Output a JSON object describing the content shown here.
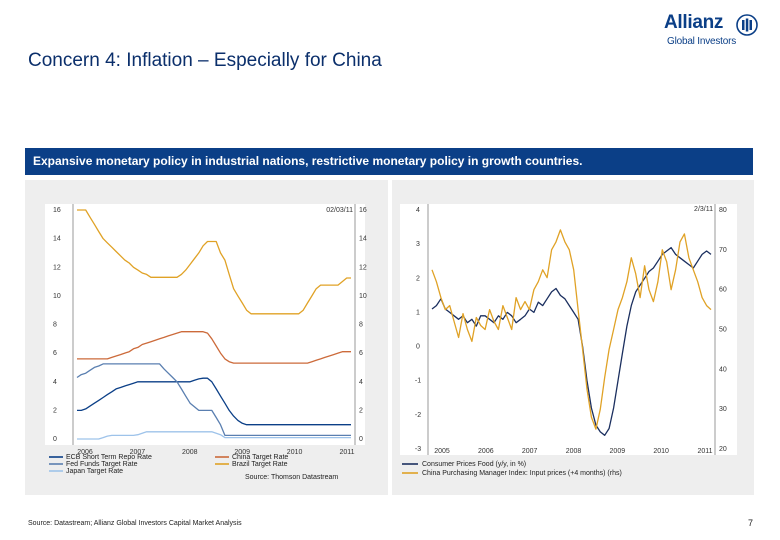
{
  "header": {
    "title": "Concern 4: Inflation – Especially for China",
    "logo_brand": "Allianz",
    "logo_sub": "Global Investors"
  },
  "banner": {
    "text": "Expansive monetary policy in industrial nations, restrictive monetary policy in growth countries."
  },
  "colors": {
    "navy": "#0b3f87",
    "lightblue": "#9ec3ea",
    "orange": "#cc6a3a",
    "gold": "#e0a226",
    "darknavy": "#1b2f5f"
  },
  "footer": {
    "source": "Source: Datastream; Allianz Global Investors Capital Market Analysis",
    "page": "7"
  },
  "chart_data": [
    {
      "type": "line",
      "date_label": "02/03/11",
      "x_ticks": [
        "2006",
        "2007",
        "2008",
        "2009",
        "2010",
        "2011"
      ],
      "y_left_ticks": [
        "0",
        "2",
        "4",
        "6",
        "8",
        "10",
        "12",
        "14",
        "16"
      ],
      "y_right_ticks": [
        "0",
        "2",
        "4",
        "6",
        "8",
        "10",
        "12",
        "14",
        "16"
      ],
      "ylim": [
        0,
        16
      ],
      "source_note": "Source: Thomson Datastream",
      "series": [
        {
          "name": "ECB Short Term Repo Rate",
          "color": "#0b3f87",
          "values": [
            2.0,
            2.0,
            2.1,
            2.3,
            2.5,
            2.7,
            2.9,
            3.1,
            3.3,
            3.5,
            3.6,
            3.7,
            3.8,
            3.9,
            4.0,
            4.0,
            4.0,
            4.0,
            4.0,
            4.0,
            4.0,
            4.0,
            4.0,
            4.0,
            4.0,
            4.0,
            4.0,
            4.1,
            4.2,
            4.25,
            4.25,
            4.0,
            3.5,
            3.0,
            2.5,
            2.0,
            1.6,
            1.3,
            1.1,
            1.0,
            1.0,
            1.0,
            1.0,
            1.0,
            1.0,
            1.0,
            1.0,
            1.0,
            1.0,
            1.0,
            1.0,
            1.0,
            1.0,
            1.0,
            1.0,
            1.0,
            1.0,
            1.0,
            1.0,
            1.0,
            1.0,
            1.0,
            1.0,
            1.0
          ]
        },
        {
          "name": "Fed Funds Target Rate",
          "color": "#5a7fb0",
          "values": [
            4.3,
            4.5,
            4.6,
            4.8,
            5.0,
            5.1,
            5.25,
            5.25,
            5.25,
            5.25,
            5.25,
            5.25,
            5.25,
            5.25,
            5.25,
            5.25,
            5.25,
            5.25,
            5.25,
            5.25,
            4.9,
            4.6,
            4.3,
            4.0,
            3.5,
            3.0,
            2.5,
            2.25,
            2.0,
            2.0,
            2.0,
            2.0,
            1.5,
            1.0,
            0.25,
            0.25,
            0.25,
            0.25,
            0.25,
            0.25,
            0.25,
            0.25,
            0.25,
            0.25,
            0.25,
            0.25,
            0.25,
            0.25,
            0.25,
            0.25,
            0.25,
            0.25,
            0.25,
            0.25,
            0.25,
            0.25,
            0.25,
            0.25,
            0.25,
            0.25,
            0.25,
            0.25,
            0.25,
            0.25
          ]
        },
        {
          "name": "China Target Rate",
          "color": "#cc6a3a",
          "values": [
            5.6,
            5.6,
            5.6,
            5.6,
            5.6,
            5.6,
            5.6,
            5.6,
            5.7,
            5.8,
            5.9,
            6.0,
            6.1,
            6.3,
            6.4,
            6.6,
            6.7,
            6.8,
            6.9,
            7.0,
            7.1,
            7.2,
            7.3,
            7.4,
            7.5,
            7.5,
            7.5,
            7.5,
            7.5,
            7.5,
            7.4,
            7.0,
            6.5,
            6.0,
            5.6,
            5.4,
            5.3,
            5.3,
            5.3,
            5.3,
            5.3,
            5.3,
            5.3,
            5.3,
            5.3,
            5.3,
            5.3,
            5.3,
            5.3,
            5.3,
            5.3,
            5.3,
            5.3,
            5.3,
            5.4,
            5.5,
            5.6,
            5.7,
            5.8,
            5.9,
            6.0,
            6.1,
            6.1,
            6.1
          ]
        },
        {
          "name": "Brazil Target Rate",
          "color": "#e0a226",
          "values": [
            17.0,
            16.5,
            16.0,
            15.5,
            15.0,
            14.5,
            14.0,
            13.7,
            13.4,
            13.1,
            12.8,
            12.5,
            12.3,
            12.0,
            11.8,
            11.6,
            11.5,
            11.3,
            11.3,
            11.3,
            11.3,
            11.3,
            11.3,
            11.3,
            11.5,
            11.8,
            12.2,
            12.6,
            13.0,
            13.5,
            13.8,
            13.8,
            13.8,
            13.0,
            12.5,
            11.5,
            10.5,
            10.0,
            9.5,
            9.0,
            8.75,
            8.75,
            8.75,
            8.75,
            8.75,
            8.75,
            8.75,
            8.75,
            8.75,
            8.75,
            8.75,
            8.75,
            9.0,
            9.5,
            10.0,
            10.5,
            10.75,
            10.75,
            10.75,
            10.75,
            10.75,
            11.0,
            11.25,
            11.25
          ]
        },
        {
          "name": "Japan Target Rate",
          "color": "#9ec3ea",
          "values": [
            0.0,
            0.0,
            0.0,
            0.0,
            0.0,
            0.0,
            0.1,
            0.2,
            0.25,
            0.25,
            0.25,
            0.25,
            0.25,
            0.25,
            0.3,
            0.4,
            0.5,
            0.5,
            0.5,
            0.5,
            0.5,
            0.5,
            0.5,
            0.5,
            0.5,
            0.5,
            0.5,
            0.5,
            0.5,
            0.5,
            0.5,
            0.5,
            0.4,
            0.3,
            0.1,
            0.1,
            0.1,
            0.1,
            0.1,
            0.1,
            0.1,
            0.1,
            0.1,
            0.1,
            0.1,
            0.1,
            0.1,
            0.1,
            0.1,
            0.1,
            0.1,
            0.1,
            0.1,
            0.1,
            0.1,
            0.1,
            0.1,
            0.1,
            0.1,
            0.1,
            0.1,
            0.1,
            0.1,
            0.1
          ]
        }
      ]
    },
    {
      "type": "line",
      "date_label": "2/3/11",
      "x_ticks": [
        "2005",
        "2006",
        "2007",
        "2008",
        "2009",
        "2010",
        "2011"
      ],
      "y_left_ticks": [
        "-3",
        "-2",
        "-1",
        "0",
        "1",
        "2",
        "3",
        "4"
      ],
      "y_right_ticks": [
        "20",
        "30",
        "40",
        "50",
        "60",
        "70",
        "80"
      ],
      "ylim_left": [
        -3,
        4
      ],
      "ylim_right": [
        20,
        80
      ],
      "series": [
        {
          "name": "Consumer Prices Food (y/y, in %)",
          "color": "#1b2f5f",
          "axis": "left",
          "values": [
            1.1,
            1.2,
            1.4,
            1.1,
            1.0,
            0.9,
            0.8,
            0.9,
            0.7,
            0.8,
            0.6,
            0.9,
            0.9,
            0.8,
            0.7,
            0.9,
            0.8,
            1.0,
            0.9,
            0.7,
            0.8,
            0.9,
            1.1,
            1.0,
            1.3,
            1.2,
            1.4,
            1.6,
            1.7,
            1.5,
            1.4,
            1.2,
            1.0,
            0.8,
            0.0,
            -1.0,
            -1.8,
            -2.3,
            -2.5,
            -2.6,
            -2.4,
            -1.8,
            -1.0,
            -0.2,
            0.6,
            1.2,
            1.6,
            1.8,
            2.0,
            2.2,
            2.3,
            2.5,
            2.7,
            2.8,
            2.9,
            2.7,
            2.6,
            2.5,
            2.4,
            2.3,
            2.5,
            2.7,
            2.8,
            2.7
          ]
        },
        {
          "name": "China Purchasing Manager Index: Input prices (+4 months) (rhs)",
          "color": "#e0a226",
          "axis": "right",
          "values": [
            65,
            62,
            58,
            55,
            56,
            52,
            48,
            54,
            50,
            47,
            53,
            51,
            50,
            55,
            52,
            50,
            56,
            53,
            50,
            58,
            55,
            57,
            55,
            60,
            62,
            65,
            63,
            70,
            72,
            75,
            72,
            70,
            65,
            55,
            45,
            35,
            28,
            25,
            30,
            38,
            45,
            50,
            55,
            58,
            62,
            68,
            64,
            58,
            66,
            60,
            57,
            62,
            70,
            67,
            60,
            65,
            72,
            74,
            68,
            65,
            62,
            58,
            56,
            55
          ]
        }
      ]
    }
  ]
}
